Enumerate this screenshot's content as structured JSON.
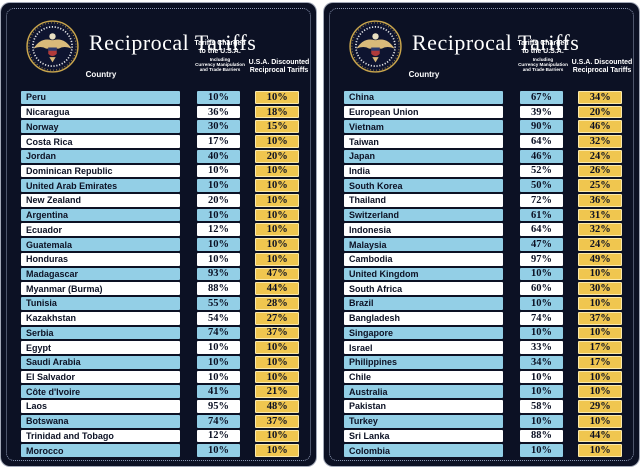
{
  "header": {
    "title": "Reciprocal Tariffs",
    "col_country": "Country",
    "col_charged_line1": "Tariffs Charged",
    "col_charged_line2": "to the U.S.A.",
    "col_charged_sub1": "Including",
    "col_charged_sub2": "Currency Manipulation",
    "col_charged_sub3": "and Trade Barriers",
    "col_discounted_line1": "U.S.A. Discounted",
    "col_discounted_line2": "Reciprocal Tariffs"
  },
  "colors": {
    "panel_background": "#0c1124",
    "row_blue": "#93cfe6",
    "row_white": "#ffffff",
    "discounted_gold": "#f0c64f",
    "title_text": "#ffffff",
    "seal_gold": "#caa64c"
  },
  "icons": {
    "seal": "presidential-seal-icon"
  },
  "chart_data": {
    "type": "table",
    "title": "Reciprocal Tariffs",
    "columns": [
      "Country",
      "Tariffs Charged to the U.S.A. Including Currency Manipulation and Trade Barriers",
      "U.S.A. Discounted Reciprocal Tariffs"
    ],
    "panels": [
      {
        "rows": [
          {
            "country": "Peru",
            "charged": "10%",
            "discounted": "10%"
          },
          {
            "country": "Nicaragua",
            "charged": "36%",
            "discounted": "18%"
          },
          {
            "country": "Norway",
            "charged": "30%",
            "discounted": "15%"
          },
          {
            "country": "Costa Rica",
            "charged": "17%",
            "discounted": "10%"
          },
          {
            "country": "Jordan",
            "charged": "40%",
            "discounted": "20%"
          },
          {
            "country": "Dominican Republic",
            "charged": "10%",
            "discounted": "10%"
          },
          {
            "country": "United Arab Emirates",
            "charged": "10%",
            "discounted": "10%"
          },
          {
            "country": "New Zealand",
            "charged": "20%",
            "discounted": "10%"
          },
          {
            "country": "Argentina",
            "charged": "10%",
            "discounted": "10%"
          },
          {
            "country": "Ecuador",
            "charged": "12%",
            "discounted": "10%"
          },
          {
            "country": "Guatemala",
            "charged": "10%",
            "discounted": "10%"
          },
          {
            "country": "Honduras",
            "charged": "10%",
            "discounted": "10%"
          },
          {
            "country": "Madagascar",
            "charged": "93%",
            "discounted": "47%"
          },
          {
            "country": "Myanmar (Burma)",
            "charged": "88%",
            "discounted": "44%"
          },
          {
            "country": "Tunisia",
            "charged": "55%",
            "discounted": "28%"
          },
          {
            "country": "Kazakhstan",
            "charged": "54%",
            "discounted": "27%"
          },
          {
            "country": "Serbia",
            "charged": "74%",
            "discounted": "37%"
          },
          {
            "country": "Egypt",
            "charged": "10%",
            "discounted": "10%"
          },
          {
            "country": "Saudi Arabia",
            "charged": "10%",
            "discounted": "10%"
          },
          {
            "country": "El Salvador",
            "charged": "10%",
            "discounted": "10%"
          },
          {
            "country": "Côte d'Ivoire",
            "charged": "41%",
            "discounted": "21%"
          },
          {
            "country": "Laos",
            "charged": "95%",
            "discounted": "48%"
          },
          {
            "country": "Botswana",
            "charged": "74%",
            "discounted": "37%"
          },
          {
            "country": "Trinidad and Tobago",
            "charged": "12%",
            "discounted": "10%"
          },
          {
            "country": "Morocco",
            "charged": "10%",
            "discounted": "10%"
          }
        ]
      },
      {
        "rows": [
          {
            "country": "China",
            "charged": "67%",
            "discounted": "34%"
          },
          {
            "country": "European Union",
            "charged": "39%",
            "discounted": "20%"
          },
          {
            "country": "Vietnam",
            "charged": "90%",
            "discounted": "46%"
          },
          {
            "country": "Taiwan",
            "charged": "64%",
            "discounted": "32%"
          },
          {
            "country": "Japan",
            "charged": "46%",
            "discounted": "24%"
          },
          {
            "country": "India",
            "charged": "52%",
            "discounted": "26%"
          },
          {
            "country": "South Korea",
            "charged": "50%",
            "discounted": "25%"
          },
          {
            "country": "Thailand",
            "charged": "72%",
            "discounted": "36%"
          },
          {
            "country": "Switzerland",
            "charged": "61%",
            "discounted": "31%"
          },
          {
            "country": "Indonesia",
            "charged": "64%",
            "discounted": "32%"
          },
          {
            "country": "Malaysia",
            "charged": "47%",
            "discounted": "24%"
          },
          {
            "country": "Cambodia",
            "charged": "97%",
            "discounted": "49%"
          },
          {
            "country": "United Kingdom",
            "charged": "10%",
            "discounted": "10%"
          },
          {
            "country": "South Africa",
            "charged": "60%",
            "discounted": "30%"
          },
          {
            "country": "Brazil",
            "charged": "10%",
            "discounted": "10%"
          },
          {
            "country": "Bangladesh",
            "charged": "74%",
            "discounted": "37%"
          },
          {
            "country": "Singapore",
            "charged": "10%",
            "discounted": "10%"
          },
          {
            "country": "Israel",
            "charged": "33%",
            "discounted": "17%"
          },
          {
            "country": "Philippines",
            "charged": "34%",
            "discounted": "17%"
          },
          {
            "country": "Chile",
            "charged": "10%",
            "discounted": "10%"
          },
          {
            "country": "Australia",
            "charged": "10%",
            "discounted": "10%"
          },
          {
            "country": "Pakistan",
            "charged": "58%",
            "discounted": "29%"
          },
          {
            "country": "Turkey",
            "charged": "10%",
            "discounted": "10%"
          },
          {
            "country": "Sri Lanka",
            "charged": "88%",
            "discounted": "44%"
          },
          {
            "country": "Colombia",
            "charged": "10%",
            "discounted": "10%"
          }
        ]
      }
    ]
  }
}
